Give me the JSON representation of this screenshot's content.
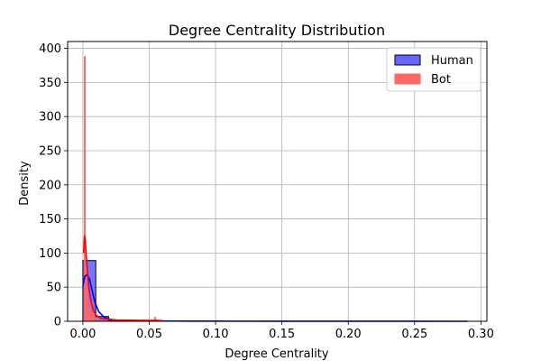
{
  "chart_data": {
    "type": "bar",
    "title": "Degree Centrality Distribution",
    "xlabel": "Degree Centrality",
    "ylabel": "Density",
    "xlim": [
      -0.0115,
      0.3045
    ],
    "ylim": [
      0,
      410
    ],
    "x_ticks": [
      "0.00",
      "0.05",
      "0.10",
      "0.15",
      "0.20",
      "0.25",
      "0.30"
    ],
    "x_tick_values": [
      0,
      0.05,
      0.1,
      0.15,
      0.2,
      0.25,
      0.3
    ],
    "y_ticks": [
      "0",
      "50",
      "100",
      "150",
      "200",
      "250",
      "300",
      "350",
      "400"
    ],
    "y_tick_values": [
      0,
      50,
      100,
      150,
      200,
      250,
      300,
      350,
      400
    ],
    "grid": true,
    "legend_position": "upper-right",
    "series": [
      {
        "name": "Human",
        "kind": "histogram",
        "color": "#0000ff",
        "fill": "#6666ff",
        "edge": "#000000",
        "bins": [
          {
            "x0": 0.0,
            "x1": 0.0097,
            "value": 89
          },
          {
            "x0": 0.0097,
            "x1": 0.0194,
            "value": 7
          },
          {
            "x0": 0.0194,
            "x1": 0.0291,
            "value": 1.5
          },
          {
            "x0": 0.0291,
            "x1": 0.0388,
            "value": 0.8
          },
          {
            "x0": 0.0388,
            "x1": 0.0485,
            "value": 0.5
          },
          {
            "x0": 0.0485,
            "x1": 0.0582,
            "value": 0.4
          },
          {
            "x0": 0.0582,
            "x1": 0.0679,
            "value": 0.2
          }
        ],
        "kde": {
          "x": [
            0.0,
            0.0015,
            0.003,
            0.005,
            0.007,
            0.009,
            0.012,
            0.016,
            0.02,
            0.025,
            0.03,
            0.04,
            0.05,
            0.06,
            0.08,
            0.1,
            0.15,
            0.2,
            0.25,
            0.29
          ],
          "y": [
            52,
            66,
            68,
            62,
            45,
            28,
            14,
            6,
            3,
            1.8,
            1.2,
            0.8,
            0.6,
            0.5,
            0.3,
            0.2,
            0.1,
            0.05,
            0.02,
            0.0
          ]
        }
      },
      {
        "name": "Bot",
        "kind": "histogram",
        "color": "#ff0000",
        "fill": "#ff6666",
        "edge": "#ff6666",
        "bins": [
          {
            "x0": 0.0009,
            "x1": 0.0019,
            "value": 388
          },
          {
            "x0": 0.0019,
            "x1": 0.0029,
            "value": 80
          },
          {
            "x0": 0.0029,
            "x1": 0.0039,
            "value": 50
          },
          {
            "x0": 0.0039,
            "x1": 0.0049,
            "value": 20
          },
          {
            "x0": 0.0049,
            "x1": 0.0059,
            "value": 35
          },
          {
            "x0": 0.0059,
            "x1": 0.0069,
            "value": 12
          },
          {
            "x0": 0.0069,
            "x1": 0.0079,
            "value": 28
          },
          {
            "x0": 0.0079,
            "x1": 0.0089,
            "value": 10
          },
          {
            "x0": 0.0089,
            "x1": 0.0099,
            "value": 6
          },
          {
            "x0": 0.0099,
            "x1": 0.0109,
            "value": 4
          },
          {
            "x0": 0.0109,
            "x1": 0.0119,
            "value": 3
          },
          {
            "x0": 0.0139,
            "x1": 0.0149,
            "value": 2
          },
          {
            "x0": 0.0169,
            "x1": 0.0179,
            "value": 2
          },
          {
            "x0": 0.0538,
            "x1": 0.0548,
            "value": 6
          },
          {
            "x0": 0.0548,
            "x1": 0.0558,
            "value": 3
          }
        ],
        "kde": {
          "x": [
            0.0005,
            0.0012,
            0.0018,
            0.0025,
            0.0035,
            0.0045,
            0.006,
            0.008,
            0.01,
            0.013,
            0.016,
            0.02,
            0.025,
            0.03,
            0.04,
            0.05,
            0.055,
            0.06
          ],
          "y": [
            100,
            125,
            120,
            98,
            72,
            50,
            30,
            16,
            9,
            5,
            3.5,
            2.5,
            2,
            1.8,
            1.5,
            1.3,
            1.2,
            0.9
          ]
        }
      }
    ]
  }
}
